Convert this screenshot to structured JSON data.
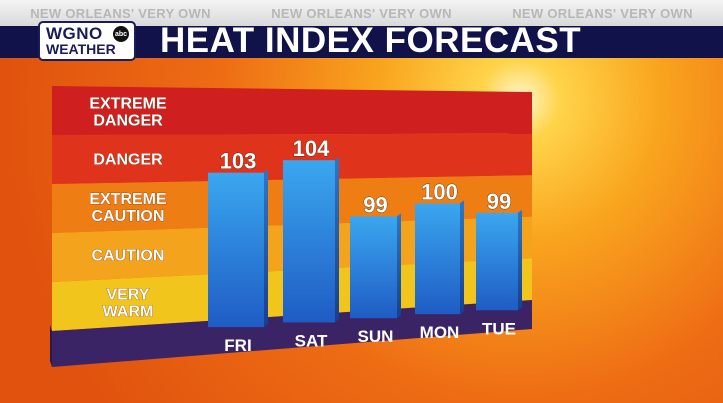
{
  "ticker": [
    "NEW ORLEANS' VERY OWN",
    "NEW ORLEANS' VERY OWN",
    "NEW ORLEANS' VERY OWN"
  ],
  "logo": {
    "call_letters": "WGNO",
    "network": "abc",
    "subtitle": "WEATHER"
  },
  "title": "HEAT INDEX FORECAST",
  "chart_data": {
    "type": "bar",
    "title": "HEAT INDEX FORECAST",
    "categories": [
      "FRI",
      "SAT",
      "SUN",
      "MON",
      "TUE"
    ],
    "values": [
      103,
      104,
      99,
      100,
      99
    ],
    "bands": [
      {
        "label_lines": [
          "VERY",
          "WARM"
        ],
        "color": "#f2c51c"
      },
      {
        "label_lines": [
          "CAUTION"
        ],
        "color": "#f4a41c"
      },
      {
        "label_lines": [
          "EXTREME",
          "CAUTION"
        ],
        "color": "#ee7e14"
      },
      {
        "label_lines": [
          "DANGER"
        ],
        "color": "#e0331c"
      },
      {
        "label_lines": [
          "EXTREME",
          "DANGER"
        ],
        "color": "#cf1f1f"
      }
    ],
    "bar_color_top": "#3aa7ef",
    "bar_color_bottom": "#1f5cc4",
    "base_color": "#3a2465"
  }
}
